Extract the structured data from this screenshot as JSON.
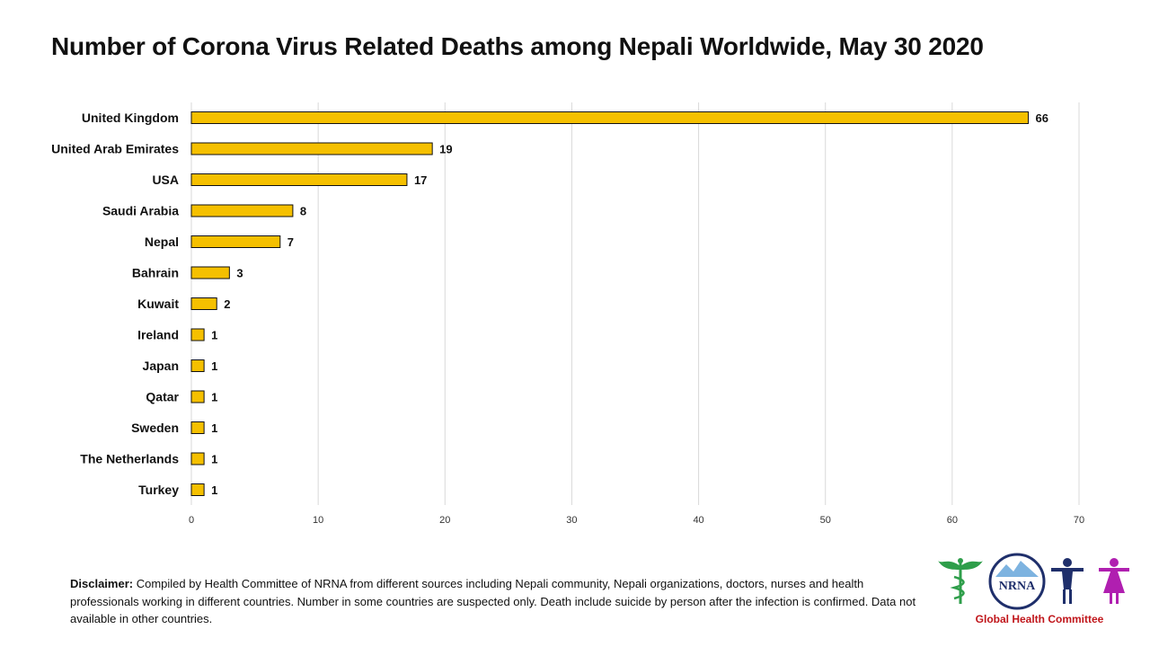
{
  "title": "Number of Corona Virus Related Deaths among Nepali Worldwide, May 30 2020",
  "chart_data": {
    "type": "bar",
    "orientation": "horizontal",
    "title": "Number of Corona Virus Related Deaths among Nepali Worldwide, May 30 2020",
    "categories": [
      "United Kingdom",
      "United Arab Emirates",
      "USA",
      "Saudi Arabia",
      "Nepal",
      "Bahrain",
      "Kuwait",
      "Ireland",
      "Japan",
      "Qatar",
      "Sweden",
      "The Netherlands",
      "Turkey"
    ],
    "values": [
      66,
      19,
      17,
      8,
      7,
      3,
      2,
      1,
      1,
      1,
      1,
      1,
      1
    ],
    "xlim": [
      0,
      70
    ],
    "xticks": [
      "0",
      "10",
      "20",
      "30",
      "40",
      "50",
      "60",
      "70"
    ],
    "xlabel": "",
    "ylabel": "",
    "grid": true,
    "data_labels": true,
    "bar_color": "#F5C000"
  },
  "disclaimer": {
    "label": "Disclaimer:",
    "text": " Compiled by Health Committee of NRNA from different sources including Nepali community, Nepali organizations, doctors, nurses and health professionals working in different countries. Number in some countries are suspected only. Death include suicide by person after the infection is confirmed. Data not available in other countries."
  },
  "logo": {
    "name": "NRNA",
    "caption": "Global Health Committee",
    "caption_color": "#C0161B"
  }
}
